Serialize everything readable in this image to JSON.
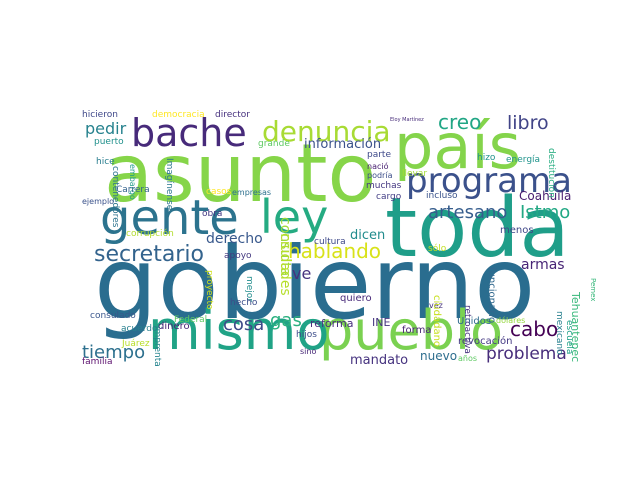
{
  "wordcloud": {
    "words": [
      {
        "id": "gobierno",
        "text": "gobierno",
        "color": "#2a6d8f"
      },
      {
        "id": "asunto",
        "text": "asunto",
        "color": "#86d549"
      },
      {
        "id": "pais",
        "text": "país",
        "color": "#84d44b"
      },
      {
        "id": "toda",
        "text": "toda",
        "color": "#1f9e89"
      },
      {
        "id": "pueblo",
        "text": "pueblo",
        "color": "#7ad151"
      },
      {
        "id": "mismo",
        "text": "mismo",
        "color": "#20a386"
      },
      {
        "id": "gente",
        "text": "gente",
        "color": "#2c738e"
      },
      {
        "id": "ley",
        "text": "ley",
        "color": "#25ab82"
      },
      {
        "id": "bache",
        "text": "bache",
        "color": "#472a7a"
      },
      {
        "id": "programa",
        "text": "programa",
        "color": "#3b518b"
      },
      {
        "id": "denuncia",
        "text": "denuncia",
        "color": "#a8db34"
      },
      {
        "id": "secretario",
        "text": "secretario",
        "color": "#33638d"
      },
      {
        "id": "hablando",
        "text": "hablando",
        "color": "#d8e219"
      },
      {
        "id": "creo",
        "text": "creo",
        "color": "#21a685"
      },
      {
        "id": "libro",
        "text": "libro",
        "color": "#414487"
      },
      {
        "id": "artesano",
        "text": "artesano",
        "color": "#365d8d"
      },
      {
        "id": "istmo",
        "text": "Istmo",
        "color": "#22a884"
      },
      {
        "id": "cosa",
        "text": "cosa",
        "color": "#3e4a89"
      },
      {
        "id": "gas",
        "text": "gas",
        "color": "#2ab07f"
      },
      {
        "id": "tiempo",
        "text": "tiempo",
        "color": "#2d708e"
      },
      {
        "id": "pedir",
        "text": "pedir",
        "color": "#26828e"
      },
      {
        "id": "cabo",
        "text": "cabo",
        "color": "#440154"
      },
      {
        "id": "problema",
        "text": "problema",
        "color": "#472d7b"
      },
      {
        "id": "consulta",
        "text": "consulta",
        "color": "#a0da39"
      },
      {
        "id": "ciudades",
        "text": "ciudades",
        "color": "#b5de2b"
      },
      {
        "id": "derecho",
        "text": "derecho",
        "color": "#38588c"
      },
      {
        "id": "informacion",
        "text": "información",
        "color": "#3b528b"
      },
      {
        "id": "armas",
        "text": "armas",
        "color": "#482576"
      },
      {
        "id": "ve",
        "text": "ve",
        "color": "#46327e"
      },
      {
        "id": "dicen",
        "text": "dicen",
        "color": "#228c8d"
      },
      {
        "id": "mandato",
        "text": "mandato",
        "color": "#46337f"
      },
      {
        "id": "nuevo",
        "text": "nuevo",
        "color": "#2e6e8e"
      },
      {
        "id": "coahuila",
        "text": "Coahuila",
        "color": "#481d6f"
      },
      {
        "id": "tehuantepec",
        "text": "Tehuantepec",
        "color": "#35b779"
      },
      {
        "id": "contenedores",
        "text": "contenedores",
        "color": "#2c738e"
      },
      {
        "id": "imaginense",
        "text": "Imagínense",
        "color": "#2a768e"
      },
      {
        "id": "hicieron",
        "text": "hicieron",
        "color": "#3f4889"
      },
      {
        "id": "democracia",
        "text": "democracia",
        "color": "#fde725"
      },
      {
        "id": "director",
        "text": "director",
        "color": "#46307e"
      },
      {
        "id": "eloy",
        "text": "Eloy Martínez",
        "color": "#472c7a"
      },
      {
        "id": "puerto",
        "text": "puerto",
        "color": "#21918c"
      },
      {
        "id": "grande",
        "text": "grande",
        "color": "#5ec962"
      },
      {
        "id": "hice",
        "text": "hice",
        "color": "#287d8e"
      },
      {
        "id": "embargo",
        "text": "embargo",
        "color": "#1e9b8a"
      },
      {
        "id": "parte",
        "text": "parte",
        "color": "#3e4989"
      },
      {
        "id": "nacio",
        "text": "nació",
        "color": "#482071"
      },
      {
        "id": "podria",
        "text": "podría",
        "color": "#3d4e8a"
      },
      {
        "id": "hizo",
        "text": "hizo",
        "color": "#20928c"
      },
      {
        "id": "energia",
        "text": "energía",
        "color": "#1f948c"
      },
      {
        "id": "destitucion",
        "text": "destitución",
        "color": "#27ad81"
      },
      {
        "id": "carrera",
        "text": "Carrera",
        "color": "#33628d"
      },
      {
        "id": "casos",
        "text": "casos",
        "color": "#fde725"
      },
      {
        "id": "empresas",
        "text": "empresas",
        "color": "#2d708e"
      },
      {
        "id": "muchas",
        "text": "muchas",
        "color": "#453882"
      },
      {
        "id": "cargo",
        "text": "cargo",
        "color": "#433e85"
      },
      {
        "id": "incluso",
        "text": "incluso",
        "color": "#3a538b"
      },
      {
        "id": "ejemplo",
        "text": "ejemplo",
        "color": "#3b528b"
      },
      {
        "id": "obra",
        "text": "obra",
        "color": "#443983"
      },
      {
        "id": "corrupcion",
        "text": "corrupción",
        "color": "#b2dd2d"
      },
      {
        "id": "apoyo",
        "text": "apoyo",
        "color": "#44397f"
      },
      {
        "id": "cultura",
        "text": "cultura",
        "color": "#3e4989"
      },
      {
        "id": "menos",
        "text": "menos",
        "color": "#3f4788"
      },
      {
        "id": "solo",
        "text": "sólo",
        "color": "#c2df23"
      },
      {
        "id": "funcionario",
        "text": "funcionario",
        "color": "#31688e"
      },
      {
        "id": "vez",
        "text": "vez",
        "color": "#46337e"
      },
      {
        "id": "mexicano",
        "text": "mexicano",
        "color": "#27808e"
      },
      {
        "id": "escuela",
        "text": "escuela",
        "color": "#1fa187"
      },
      {
        "id": "pemex",
        "text": "Pemex",
        "color": "#35b779"
      },
      {
        "id": "consulado",
        "text": "consulado",
        "color": "#39568c"
      },
      {
        "id": "acuerdo",
        "text": "acuerdo",
        "color": "#277f8e"
      },
      {
        "id": "proyecto",
        "text": "proyecto",
        "color": "#d0e11c"
      },
      {
        "id": "mejor",
        "text": "mejor",
        "color": "#228d8d"
      },
      {
        "id": "hecho",
        "text": "hecho",
        "color": "#3c4f8a"
      },
      {
        "id": "quiero",
        "text": "quiero",
        "color": "#482979"
      },
      {
        "id": "dinero",
        "text": "dinero",
        "color": "#482576"
      },
      {
        "id": "federal",
        "text": "Federal",
        "color": "#5ec962"
      },
      {
        "id": "reforma",
        "text": "reforma",
        "color": "#472f7d"
      },
      {
        "id": "ine",
        "text": "INE",
        "color": "#463480"
      },
      {
        "id": "forma",
        "text": "forma",
        "color": "#482475"
      },
      {
        "id": "ciudadano",
        "text": "ciudadano",
        "color": "#c8e020"
      },
      {
        "id": "retroactiva",
        "text": "retroactiva",
        "color": "#46327e"
      },
      {
        "id": "unidos",
        "text": "Unidos",
        "color": "#2f6b8e"
      },
      {
        "id": "dolares",
        "text": "dólares",
        "color": "#95d840"
      },
      {
        "id": "revocacion",
        "text": "revocación",
        "color": "#443983"
      },
      {
        "id": "juarez",
        "text": "Juárez",
        "color": "#b8de29"
      },
      {
        "id": "imprenta",
        "text": "imprenta",
        "color": "#25848e"
      },
      {
        "id": "hijos",
        "text": "hijos",
        "color": "#3d4d8a"
      },
      {
        "id": "sino",
        "text": "sino",
        "color": "#482878"
      },
      {
        "id": "familia",
        "text": "familia",
        "color": "#5d126f"
      },
      {
        "id": "anos",
        "text": "años",
        "color": "#5ec962"
      },
      {
        "id": "llevar",
        "text": "llevar",
        "color": "#a5db36"
      }
    ]
  }
}
